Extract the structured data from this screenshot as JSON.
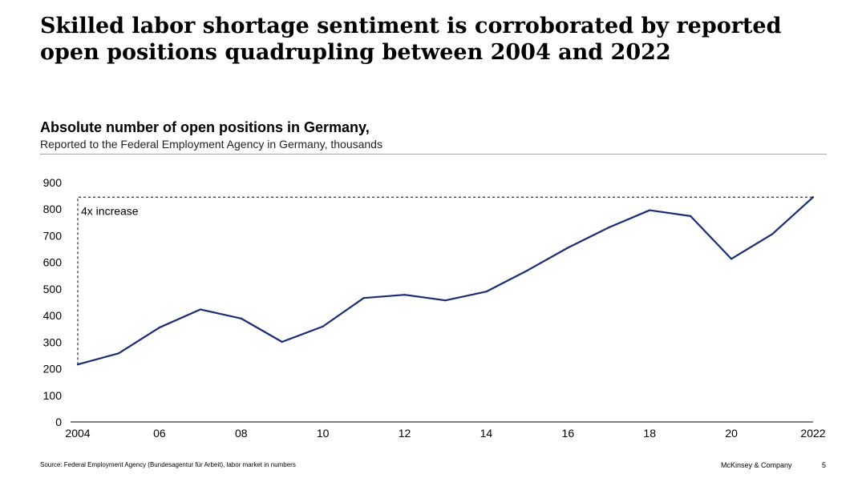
{
  "slide": {
    "title_line1": "Skilled labor shortage sentiment is corroborated by reported",
    "title_line2": "open positions quadrupling between 2004 and 2022"
  },
  "chart_data": {
    "type": "line",
    "title": "Absolute number of open positions in Germany,",
    "subtitle": "Reported to the Federal Employment Agency in Germany, thousands",
    "xlabel": "",
    "ylabel": "",
    "x": [
      2004,
      2005,
      2006,
      2007,
      2008,
      2009,
      2010,
      2011,
      2012,
      2013,
      2014,
      2015,
      2016,
      2017,
      2018,
      2019,
      2020,
      2021,
      2022
    ],
    "series": [
      {
        "name": "Open positions",
        "values": [
          216,
          258,
          355,
          423,
          389,
          301,
          359,
          466,
          478,
          457,
          490,
          569,
          655,
          731,
          796,
          774,
          613,
          706,
          845
        ],
        "color": "#1c2c74"
      }
    ],
    "xlim": [
      2004,
      2022
    ],
    "ylim": [
      0,
      900
    ],
    "xticks": [
      2004,
      2006,
      2008,
      2010,
      2012,
      2014,
      2016,
      2018,
      2020,
      2022
    ],
    "xtick_labels": [
      "2004",
      "06",
      "08",
      "10",
      "12",
      "14",
      "16",
      "18",
      "20",
      "2022"
    ],
    "yticks": [
      0,
      100,
      200,
      300,
      400,
      500,
      600,
      700,
      800,
      900
    ],
    "ytick_labels": [
      "0",
      "100",
      "200",
      "300",
      "400",
      "500",
      "600",
      "700",
      "800",
      "900"
    ],
    "grid": false,
    "annotation": {
      "text": "4x increase",
      "from_x": 2004,
      "from_y": 216,
      "to_x": 2022,
      "to_y": 845
    }
  },
  "footer": {
    "source": "Source: Federal Employment Agency (Bundesagentur für Arbeit), labor market in numbers",
    "brand": "McKinsey & Company",
    "page_number": "5"
  }
}
